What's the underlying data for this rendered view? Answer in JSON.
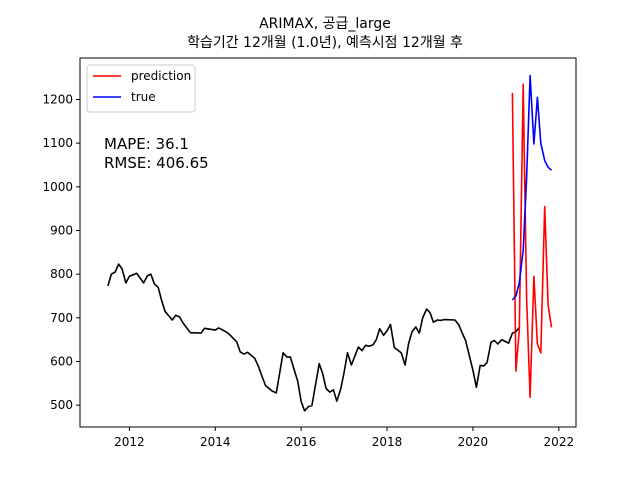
{
  "chart_data": {
    "type": "line",
    "title": "ARIMAX, 공급_large",
    "subtitle": "학습기간 12개월 (1.0년), 예측시점 12개월 후",
    "xlabel": "",
    "ylabel": "",
    "xlim": [
      2010.85,
      2022.4
    ],
    "ylim": [
      450,
      1295
    ],
    "x_ticks": [
      2012,
      2014,
      2016,
      2018,
      2020,
      2022
    ],
    "y_ticks": [
      500,
      600,
      700,
      800,
      900,
      1000,
      1100,
      1200
    ],
    "grid": false,
    "legend_placement": "top-left",
    "annotations": [
      "MAPE: 36.1",
      "RMSE: 406.65"
    ],
    "series": [
      {
        "name": "",
        "color": "#000000",
        "points": [
          [
            2011.5,
            773
          ],
          [
            2011.58,
            800
          ],
          [
            2011.67,
            805
          ],
          [
            2011.75,
            823
          ],
          [
            2011.83,
            812
          ],
          [
            2011.92,
            780
          ],
          [
            2012.0,
            795
          ],
          [
            2012.17,
            802
          ],
          [
            2012.33,
            780
          ],
          [
            2012.42,
            796
          ],
          [
            2012.5,
            800
          ],
          [
            2012.58,
            778
          ],
          [
            2012.67,
            770
          ],
          [
            2012.75,
            740
          ],
          [
            2012.83,
            715
          ],
          [
            2013.0,
            695
          ],
          [
            2013.08,
            706
          ],
          [
            2013.17,
            702
          ],
          [
            2013.25,
            688
          ],
          [
            2013.42,
            666
          ],
          [
            2013.67,
            665
          ],
          [
            2013.75,
            676
          ],
          [
            2014.0,
            672
          ],
          [
            2014.08,
            677
          ],
          [
            2014.25,
            668
          ],
          [
            2014.33,
            662
          ],
          [
            2014.5,
            645
          ],
          [
            2014.58,
            622
          ],
          [
            2014.67,
            617
          ],
          [
            2014.75,
            621
          ],
          [
            2014.92,
            607
          ],
          [
            2015.0,
            590
          ],
          [
            2015.08,
            568
          ],
          [
            2015.17,
            545
          ],
          [
            2015.33,
            532
          ],
          [
            2015.42,
            528
          ],
          [
            2015.58,
            620
          ],
          [
            2015.67,
            610
          ],
          [
            2015.75,
            610
          ],
          [
            2015.83,
            583
          ],
          [
            2015.92,
            555
          ],
          [
            2016.0,
            508
          ],
          [
            2016.08,
            487
          ],
          [
            2016.17,
            497
          ],
          [
            2016.25,
            499
          ],
          [
            2016.42,
            595
          ],
          [
            2016.5,
            573
          ],
          [
            2016.58,
            538
          ],
          [
            2016.67,
            530
          ],
          [
            2016.75,
            535
          ],
          [
            2016.83,
            509
          ],
          [
            2016.92,
            537
          ],
          [
            2017.0,
            575
          ],
          [
            2017.08,
            620
          ],
          [
            2017.17,
            592
          ],
          [
            2017.25,
            612
          ],
          [
            2017.33,
            633
          ],
          [
            2017.42,
            625
          ],
          [
            2017.5,
            637
          ],
          [
            2017.58,
            635
          ],
          [
            2017.67,
            638
          ],
          [
            2017.75,
            650
          ],
          [
            2017.83,
            675
          ],
          [
            2017.92,
            660
          ],
          [
            2018.0,
            670
          ],
          [
            2018.08,
            685
          ],
          [
            2018.17,
            632
          ],
          [
            2018.33,
            620
          ],
          [
            2018.42,
            592
          ],
          [
            2018.5,
            640
          ],
          [
            2018.58,
            668
          ],
          [
            2018.67,
            679
          ],
          [
            2018.75,
            665
          ],
          [
            2018.83,
            700
          ],
          [
            2018.92,
            720
          ],
          [
            2019.0,
            712
          ],
          [
            2019.08,
            690
          ],
          [
            2019.17,
            695
          ],
          [
            2019.25,
            694
          ],
          [
            2019.33,
            696
          ],
          [
            2019.58,
            695
          ],
          [
            2019.67,
            684
          ],
          [
            2019.75,
            665
          ],
          [
            2019.83,
            648
          ],
          [
            2019.92,
            612
          ],
          [
            2020.0,
            580
          ],
          [
            2020.08,
            541
          ],
          [
            2020.17,
            591
          ],
          [
            2020.25,
            590
          ],
          [
            2020.33,
            598
          ],
          [
            2020.42,
            644
          ],
          [
            2020.5,
            648
          ],
          [
            2020.58,
            640
          ],
          [
            2020.67,
            650
          ],
          [
            2020.75,
            646
          ],
          [
            2020.83,
            642
          ],
          [
            2020.92,
            665
          ],
          [
            2021.0,
            668
          ],
          [
            2021.08,
            678
          ]
        ]
      },
      {
        "name": "prediction",
        "color": "#ff0000",
        "points": [
          [
            2020.92,
            1215
          ],
          [
            2021.0,
            578
          ],
          [
            2021.08,
            672
          ],
          [
            2021.17,
            1235
          ],
          [
            2021.25,
            745
          ],
          [
            2021.33,
            518
          ],
          [
            2021.42,
            795
          ],
          [
            2021.5,
            640
          ],
          [
            2021.58,
            620
          ],
          [
            2021.67,
            955
          ],
          [
            2021.75,
            730
          ],
          [
            2021.83,
            678
          ]
        ]
      },
      {
        "name": "true",
        "color": "#0000ff",
        "points": [
          [
            2020.92,
            741
          ],
          [
            2021.0,
            750
          ],
          [
            2021.08,
            780
          ],
          [
            2021.17,
            855
          ],
          [
            2021.25,
            1020
          ],
          [
            2021.33,
            1255
          ],
          [
            2021.42,
            1098
          ],
          [
            2021.5,
            1205
          ],
          [
            2021.58,
            1100
          ],
          [
            2021.67,
            1060
          ],
          [
            2021.75,
            1045
          ],
          [
            2021.83,
            1038
          ]
        ]
      }
    ]
  }
}
